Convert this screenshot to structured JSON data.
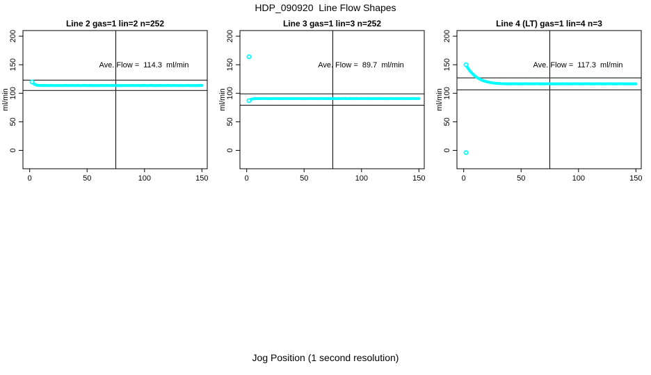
{
  "figure": {
    "title": "HDP_090920  Line Flow Shapes",
    "xlabel": "Jog Position (1 second resolution)",
    "background": "#ffffff"
  },
  "chart_data": {
    "type": "scatter",
    "point_color": "#00FFFF",
    "axis_color": "#000000",
    "ylabel": "ml/min",
    "x_ticks": [
      0,
      50,
      100,
      150
    ],
    "y_ticks": [
      0,
      50,
      100,
      150,
      200
    ],
    "xlim": [
      -6,
      156
    ],
    "ylim": [
      -30,
      212
    ],
    "grid": false,
    "legend": "none",
    "panels": [
      {
        "title": "Line 2 gas=1 lin=2 n=252",
        "annotation": "Ave. Flow =  114.3  ml/min",
        "ave_flow": 114.3,
        "vline_x": 75,
        "hlines": [
          123,
          105
        ],
        "markers": [
          [
            2,
            120
          ]
        ],
        "points": [
          [
            2,
            120.0
          ],
          [
            3,
            117.6
          ],
          [
            4,
            116.0
          ],
          [
            5,
            114.9
          ],
          [
            6,
            114.3
          ],
          [
            7,
            113.9
          ],
          [
            8,
            113.8
          ],
          [
            10,
            113.7
          ],
          [
            12,
            113.6
          ],
          [
            14,
            113.7
          ],
          [
            16,
            113.5
          ],
          [
            18,
            113.8
          ],
          [
            20,
            113.6
          ],
          [
            22,
            113.5
          ],
          [
            24,
            113.7
          ],
          [
            26,
            113.6
          ],
          [
            28,
            113.4
          ],
          [
            30,
            113.7
          ],
          [
            32,
            113.6
          ],
          [
            34,
            113.5
          ],
          [
            36,
            113.7
          ],
          [
            38,
            113.6
          ],
          [
            40,
            113.5
          ],
          [
            42,
            113.7
          ],
          [
            44,
            113.4
          ],
          [
            46,
            113.6
          ],
          [
            48,
            113.7
          ],
          [
            50,
            113.5
          ],
          [
            52,
            113.6
          ],
          [
            54,
            113.7
          ],
          [
            56,
            113.5
          ],
          [
            58,
            113.6
          ],
          [
            60,
            113.4
          ],
          [
            62,
            113.7
          ],
          [
            64,
            113.6
          ],
          [
            66,
            113.5
          ],
          [
            68,
            113.7
          ],
          [
            70,
            113.5
          ],
          [
            72,
            113.6
          ],
          [
            74,
            113.7
          ],
          [
            76,
            113.5
          ],
          [
            78,
            113.6
          ],
          [
            80,
            113.4
          ],
          [
            82,
            113.7
          ],
          [
            84,
            113.6
          ],
          [
            86,
            113.5
          ],
          [
            88,
            113.7
          ],
          [
            90,
            113.6
          ],
          [
            92,
            113.5
          ],
          [
            94,
            113.7
          ],
          [
            96,
            113.4
          ],
          [
            98,
            113.6
          ],
          [
            100,
            113.7
          ],
          [
            102,
            113.5
          ],
          [
            104,
            113.6
          ],
          [
            106,
            113.7
          ],
          [
            108,
            113.5
          ],
          [
            110,
            113.6
          ],
          [
            112,
            113.4
          ],
          [
            114,
            113.7
          ],
          [
            116,
            113.6
          ],
          [
            118,
            113.5
          ],
          [
            120,
            113.7
          ],
          [
            122,
            113.6
          ],
          [
            124,
            113.5
          ],
          [
            126,
            113.7
          ],
          [
            128,
            113.4
          ],
          [
            130,
            113.6
          ],
          [
            132,
            113.7
          ],
          [
            134,
            113.5
          ],
          [
            136,
            113.6
          ],
          [
            138,
            113.7
          ],
          [
            140,
            113.5
          ],
          [
            142,
            113.6
          ],
          [
            144,
            113.4
          ],
          [
            146,
            113.7
          ],
          [
            148,
            113.6
          ],
          [
            150,
            113.8
          ]
        ]
      },
      {
        "title": "Line 3 gas=1 lin=3 n=252",
        "annotation": "Ave. Flow =  89.7  ml/min",
        "ave_flow": 89.7,
        "vline_x": 75,
        "hlines": [
          99,
          79
        ],
        "markers": [
          [
            2,
            164
          ],
          [
            2,
            87
          ]
        ],
        "points": [
          [
            2,
            87.0
          ],
          [
            3,
            88.6
          ],
          [
            4,
            89.5
          ],
          [
            5,
            90.1
          ],
          [
            6,
            90.4
          ],
          [
            7,
            90.5
          ],
          [
            8,
            90.6
          ],
          [
            10,
            90.7
          ],
          [
            12,
            90.6
          ],
          [
            14,
            90.7
          ],
          [
            16,
            90.8
          ],
          [
            18,
            90.6
          ],
          [
            20,
            90.7
          ],
          [
            22,
            90.5
          ],
          [
            24,
            90.7
          ],
          [
            26,
            90.8
          ],
          [
            28,
            90.6
          ],
          [
            30,
            90.7
          ],
          [
            32,
            90.5
          ],
          [
            34,
            90.7
          ],
          [
            36,
            90.8
          ],
          [
            38,
            90.6
          ],
          [
            40,
            90.7
          ],
          [
            42,
            90.6
          ],
          [
            44,
            90.8
          ],
          [
            46,
            90.7
          ],
          [
            48,
            90.5
          ],
          [
            50,
            90.7
          ],
          [
            52,
            90.6
          ],
          [
            54,
            90.8
          ],
          [
            56,
            90.7
          ],
          [
            58,
            90.6
          ],
          [
            60,
            90.7
          ],
          [
            62,
            90.5
          ],
          [
            64,
            90.7
          ],
          [
            66,
            90.8
          ],
          [
            68,
            90.6
          ],
          [
            70,
            90.7
          ],
          [
            72,
            90.6
          ],
          [
            74,
            90.8
          ],
          [
            76,
            90.7
          ],
          [
            78,
            90.5
          ],
          [
            80,
            90.7
          ],
          [
            82,
            90.6
          ],
          [
            84,
            90.8
          ],
          [
            86,
            90.7
          ],
          [
            88,
            90.6
          ],
          [
            90,
            90.7
          ],
          [
            92,
            90.5
          ],
          [
            94,
            90.7
          ],
          [
            96,
            90.8
          ],
          [
            98,
            90.6
          ],
          [
            100,
            90.7
          ],
          [
            102,
            90.6
          ],
          [
            104,
            90.8
          ],
          [
            106,
            90.7
          ],
          [
            108,
            90.5
          ],
          [
            110,
            90.7
          ],
          [
            112,
            90.6
          ],
          [
            114,
            90.8
          ],
          [
            116,
            90.7
          ],
          [
            118,
            90.6
          ],
          [
            120,
            90.7
          ],
          [
            122,
            90.5
          ],
          [
            124,
            90.7
          ],
          [
            126,
            90.8
          ],
          [
            128,
            90.6
          ],
          [
            130,
            90.7
          ],
          [
            132,
            90.6
          ],
          [
            134,
            90.8
          ],
          [
            136,
            90.7
          ],
          [
            138,
            90.5
          ],
          [
            140,
            90.7
          ],
          [
            142,
            90.6
          ],
          [
            144,
            90.8
          ],
          [
            146,
            90.7
          ],
          [
            148,
            90.6
          ],
          [
            150,
            90.7
          ]
        ]
      },
      {
        "title": "Line 4 (LT) gas=1 lin=4 n=3",
        "annotation": "Ave. Flow =  117.3  ml/min",
        "ave_flow": 117.3,
        "vline_x": 75,
        "hlines": [
          127,
          106
        ],
        "markers": [
          [
            2,
            150
          ],
          [
            2,
            -4
          ]
        ],
        "points": [
          [
            2,
            150.0
          ],
          [
            3,
            146.4
          ],
          [
            4,
            143.2
          ],
          [
            5,
            140.3
          ],
          [
            6,
            137.8
          ],
          [
            7,
            135.5
          ],
          [
            8,
            133.4
          ],
          [
            9,
            131.6
          ],
          [
            10,
            129.9
          ],
          [
            11,
            128.4
          ],
          [
            12,
            127.1
          ],
          [
            13,
            125.9
          ],
          [
            14,
            124.8
          ],
          [
            15,
            123.8
          ],
          [
            16,
            122.9
          ],
          [
            17,
            122.1
          ],
          [
            18,
            121.4
          ],
          [
            19,
            120.8
          ],
          [
            20,
            120.2
          ],
          [
            22,
            119.3
          ],
          [
            24,
            118.5
          ],
          [
            26,
            117.9
          ],
          [
            28,
            117.5
          ],
          [
            30,
            117.2
          ],
          [
            32,
            116.9
          ],
          [
            34,
            116.8
          ],
          [
            36,
            116.7
          ],
          [
            38,
            116.6
          ],
          [
            40,
            116.7
          ],
          [
            42,
            116.5
          ],
          [
            44,
            116.8
          ],
          [
            46,
            116.6
          ],
          [
            48,
            116.5
          ],
          [
            50,
            116.7
          ],
          [
            52,
            116.6
          ],
          [
            54,
            116.8
          ],
          [
            56,
            116.5
          ],
          [
            58,
            116.7
          ],
          [
            60,
            116.6
          ],
          [
            62,
            116.5
          ],
          [
            64,
            116.8
          ],
          [
            66,
            116.6
          ],
          [
            68,
            116.7
          ],
          [
            70,
            116.5
          ],
          [
            72,
            116.6
          ],
          [
            74,
            116.8
          ],
          [
            76,
            116.6
          ],
          [
            78,
            116.5
          ],
          [
            80,
            116.7
          ],
          [
            82,
            116.6
          ],
          [
            84,
            116.5
          ],
          [
            86,
            116.8
          ],
          [
            88,
            116.6
          ],
          [
            90,
            116.7
          ],
          [
            92,
            116.5
          ],
          [
            94,
            116.6
          ],
          [
            96,
            116.8
          ],
          [
            98,
            116.5
          ],
          [
            100,
            116.7
          ],
          [
            102,
            116.6
          ],
          [
            104,
            116.5
          ],
          [
            106,
            116.8
          ],
          [
            108,
            116.6
          ],
          [
            110,
            116.7
          ],
          [
            112,
            116.5
          ],
          [
            114,
            116.6
          ],
          [
            116,
            116.8
          ],
          [
            118,
            116.5
          ],
          [
            120,
            116.7
          ],
          [
            122,
            116.6
          ],
          [
            124,
            116.5
          ],
          [
            126,
            116.8
          ],
          [
            128,
            116.6
          ],
          [
            130,
            116.7
          ],
          [
            132,
            116.5
          ],
          [
            134,
            116.6
          ],
          [
            136,
            116.8
          ],
          [
            138,
            116.5
          ],
          [
            140,
            116.7
          ],
          [
            142,
            116.6
          ],
          [
            144,
            116.5
          ],
          [
            146,
            116.7
          ],
          [
            148,
            116.6
          ],
          [
            150,
            116.6
          ]
        ]
      }
    ]
  }
}
